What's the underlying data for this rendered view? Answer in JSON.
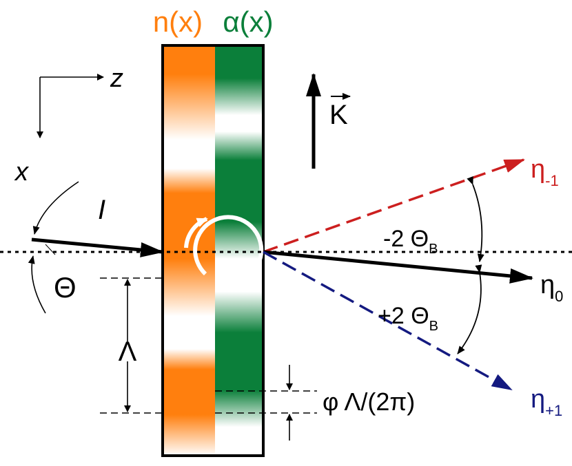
{
  "header": {
    "n_label": "n(x)",
    "alpha_label": "α(x)",
    "n_color": "#ff7f0e",
    "alpha_color": "#0b7f3a"
  },
  "axes": {
    "z_label": "z",
    "x_label": "x"
  },
  "grating": {
    "vector_label": "K",
    "orange_color": "#ff7f0e",
    "green_color": "#0b7f3a",
    "rotation_icon": "circular-arrow-icon"
  },
  "beams": {
    "incident_label": "I",
    "incident_angle_label": "Θ",
    "period_label": "Λ",
    "phase_shift_label": "φ Λ/(2π)",
    "eta_minus_1": {
      "symbol": "η",
      "subscript": "-1",
      "color": "#cc1f1f"
    },
    "eta_0": {
      "symbol": "η",
      "subscript": "0",
      "color": "#000000"
    },
    "eta_plus_1": {
      "symbol": "η",
      "subscript": "+1",
      "color": "#141a80"
    },
    "minus_angle": {
      "text": "-2 Θ",
      "subscript": "B"
    },
    "plus_angle": {
      "text": "+2 Θ",
      "subscript": "B"
    }
  }
}
